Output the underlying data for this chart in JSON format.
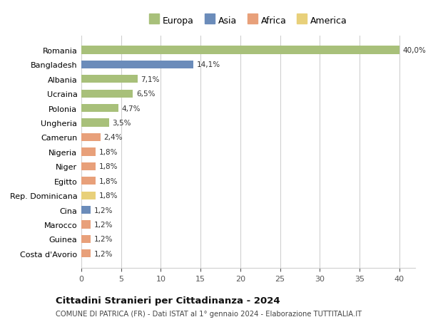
{
  "categories": [
    "Romania",
    "Bangladesh",
    "Albania",
    "Ucraina",
    "Polonia",
    "Ungheria",
    "Camerun",
    "Nigeria",
    "Niger",
    "Egitto",
    "Rep. Dominicana",
    "Cina",
    "Marocco",
    "Guinea",
    "Costa d'Avorio"
  ],
  "values": [
    40.0,
    14.1,
    7.1,
    6.5,
    4.7,
    3.5,
    2.4,
    1.8,
    1.8,
    1.8,
    1.8,
    1.2,
    1.2,
    1.2,
    1.2
  ],
  "labels": [
    "40,0%",
    "14,1%",
    "7,1%",
    "6,5%",
    "4,7%",
    "3,5%",
    "2,4%",
    "1,8%",
    "1,8%",
    "1,8%",
    "1,8%",
    "1,2%",
    "1,2%",
    "1,2%",
    "1,2%"
  ],
  "continents": [
    "Europa",
    "Asia",
    "Europa",
    "Europa",
    "Europa",
    "Europa",
    "Africa",
    "Africa",
    "Africa",
    "Africa",
    "America",
    "Asia",
    "Africa",
    "Africa",
    "Africa"
  ],
  "continent_colors": {
    "Europa": "#a8c07a",
    "Asia": "#6b8cba",
    "Africa": "#e8a07a",
    "America": "#e8d07a"
  },
  "legend_order": [
    "Europa",
    "Asia",
    "Africa",
    "America"
  ],
  "title": "Cittadini Stranieri per Cittadinanza - 2024",
  "subtitle": "COMUNE DI PATRICA (FR) - Dati ISTAT al 1° gennaio 2024 - Elaborazione TUTTITALIA.IT",
  "xlim": [
    0,
    42
  ],
  "xticks": [
    0,
    5,
    10,
    15,
    20,
    25,
    30,
    35,
    40
  ],
  "background_color": "#ffffff",
  "grid_color": "#d0d0d0",
  "bar_height": 0.55
}
